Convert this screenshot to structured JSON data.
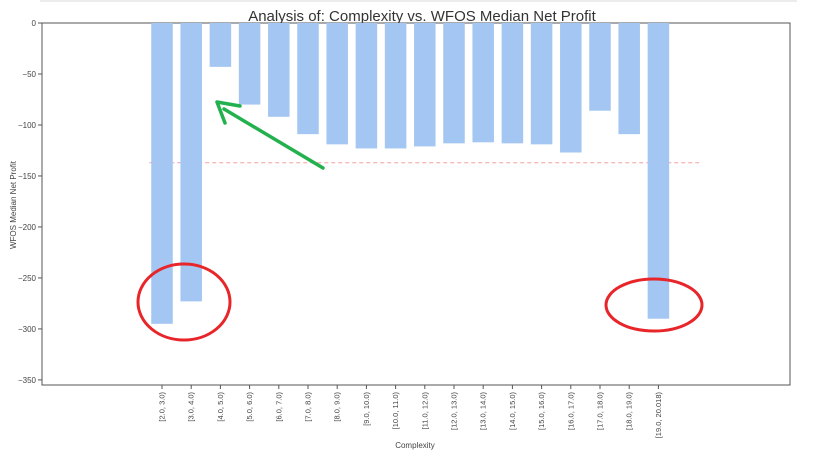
{
  "chart_data": {
    "type": "bar",
    "title": "Analysis of: Complexity vs. WFOS Median Net Profit",
    "xlabel": "Complexity",
    "ylabel": "WFOS Median Net Profit",
    "ylim": [
      -355,
      0
    ],
    "yticks": [
      0,
      -50,
      -100,
      -150,
      -200,
      -250,
      -300,
      -350
    ],
    "ytick_labels": [
      "0",
      "−50",
      "−100",
      "−150",
      "−200",
      "−250",
      "−300",
      "−350"
    ],
    "categories": [
      "[2.0, 3.0)",
      "[3.0, 4.0)",
      "[4.0, 5.0)",
      "[5.0, 6.0)",
      "[6.0, 7.0)",
      "[7.0, 8.0)",
      "[8.0, 9.0)",
      "[9.0, 10.0)",
      "[10.0, 11.0)",
      "[11.0, 12.0)",
      "[12.0, 13.0)",
      "[13.0, 14.0)",
      "[14.0, 15.0)",
      "[15.0, 16.0)",
      "[16.0, 17.0)",
      "[17.0, 18.0)",
      "[18.0, 19.0)",
      "[19.0, 20.018)"
    ],
    "values": [
      -295,
      -273,
      -43,
      -80,
      -92,
      -109,
      -119,
      -123,
      -123,
      -121,
      -118,
      -117,
      -118,
      -119,
      -127,
      -86,
      -109,
      -290
    ],
    "reference_line": -137,
    "grid": false,
    "bar_color": "#a3c6f2",
    "reference_line_color": "#f4a0a0",
    "annotations": {
      "arrow_color": "#22b14c",
      "circle_color": "#e8262a"
    }
  }
}
